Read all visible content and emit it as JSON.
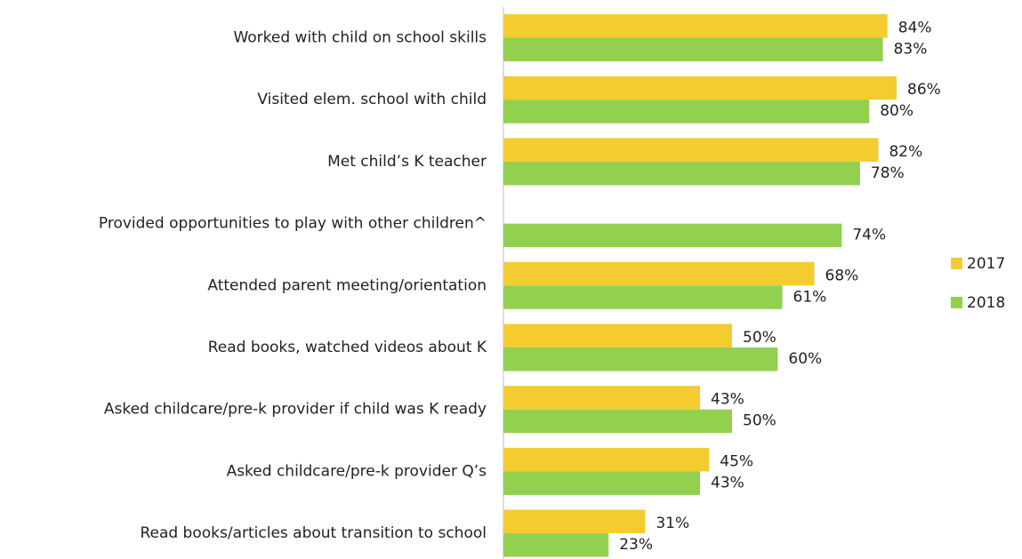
{
  "chart_data": {
    "type": "hbar",
    "categories": [
      "Worked with child on school skills",
      "Visited elem. school with child",
      "Met child’s K teacher",
      "Provided opportunities to play with other children^",
      "Attended parent meeting/orientation",
      "Read books, watched videos about K",
      "Asked childcare/pre-k provider if child was K ready",
      "Asked childcare/pre-k provider Q’s",
      "Read books/articles about transition to school"
    ],
    "series": [
      {
        "name": "2017",
        "color": "#f4cc30",
        "values": [
          84,
          86,
          82,
          null,
          68,
          50,
          43,
          45,
          31
        ],
        "value_labels": [
          "84%",
          "86%",
          "82%",
          null,
          "68%",
          "50%",
          "43%",
          "45%",
          "31%"
        ]
      },
      {
        "name": "2018",
        "color": "#92d050",
        "values": [
          83,
          80,
          78,
          74,
          61,
          60,
          50,
          43,
          23
        ],
        "value_labels": [
          "83%",
          "80%",
          "78%",
          "74%",
          "61%",
          "60%",
          "50%",
          "43%",
          "23%"
        ]
      }
    ],
    "xlim": [
      0,
      100
    ],
    "legend": "right"
  }
}
